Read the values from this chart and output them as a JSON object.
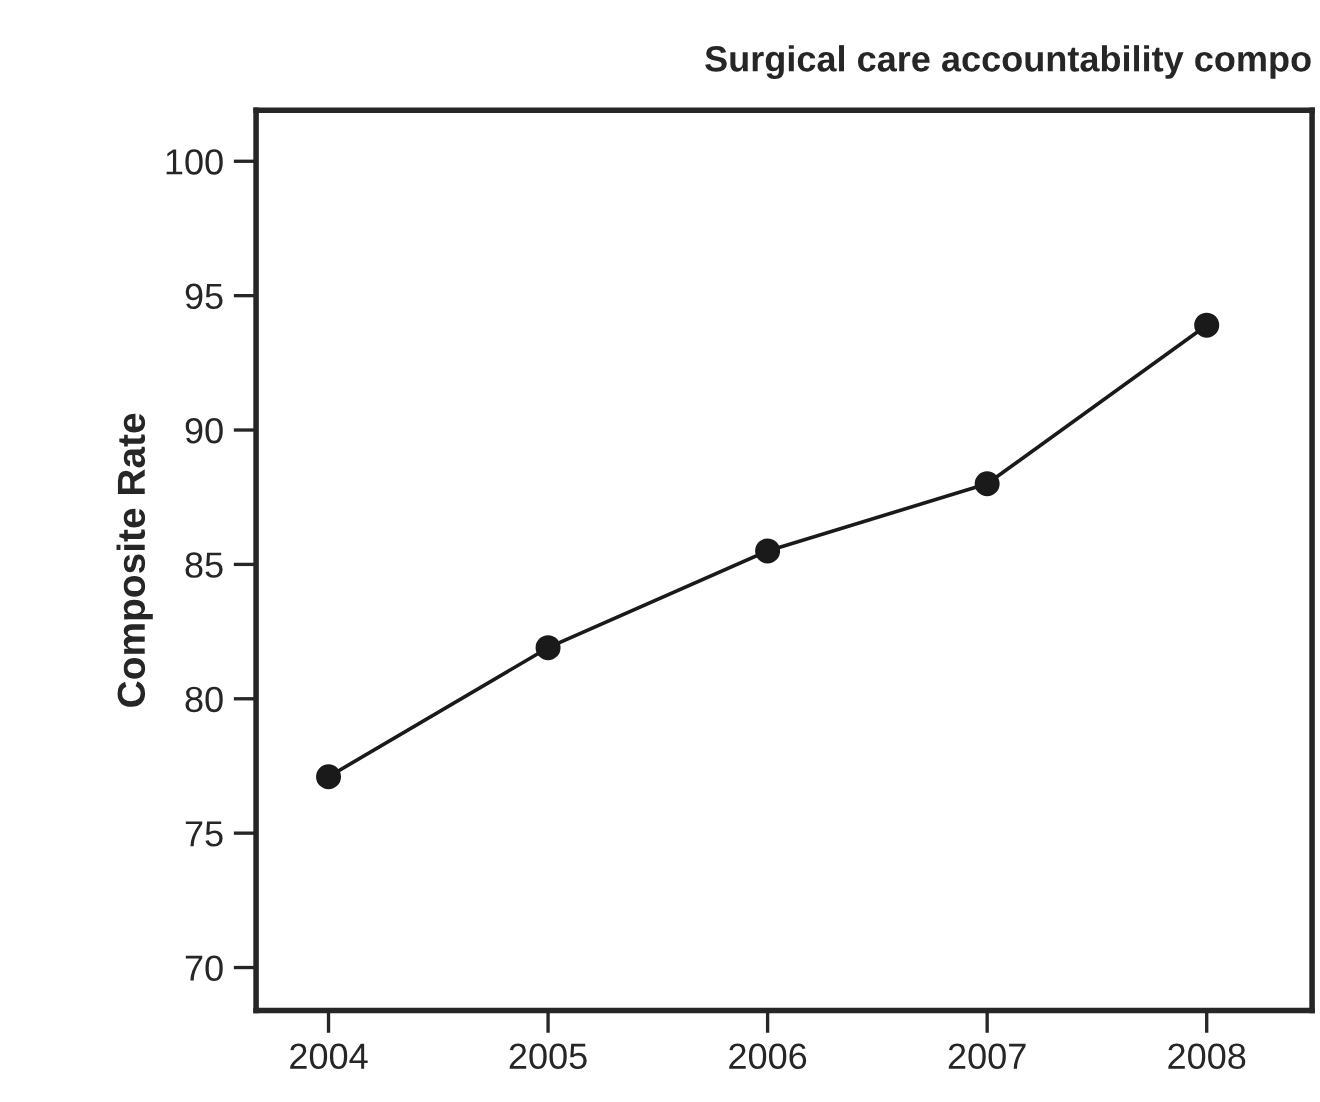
{
  "chart_data": {
    "type": "line",
    "title": "Surgical care accountability compo",
    "ylabel": "Composite Rate",
    "x": [
      2004,
      2005,
      2006,
      2007,
      2008
    ],
    "series": [
      {
        "color": "#1a1a1a",
        "values": [
          77.1,
          81.9,
          85.5,
          88.0,
          93.9
        ]
      }
    ],
    "xlim": [
      2003.67,
      2008.48
    ],
    "xticks": [
      2004,
      2005,
      2006,
      2007,
      2008
    ],
    "ylim": [
      68.4,
      101.9
    ],
    "yticks": [
      70,
      75,
      80,
      85,
      90,
      95,
      100
    ],
    "marker": "circle",
    "line_style": "solid",
    "grid": false,
    "legend": false
  }
}
